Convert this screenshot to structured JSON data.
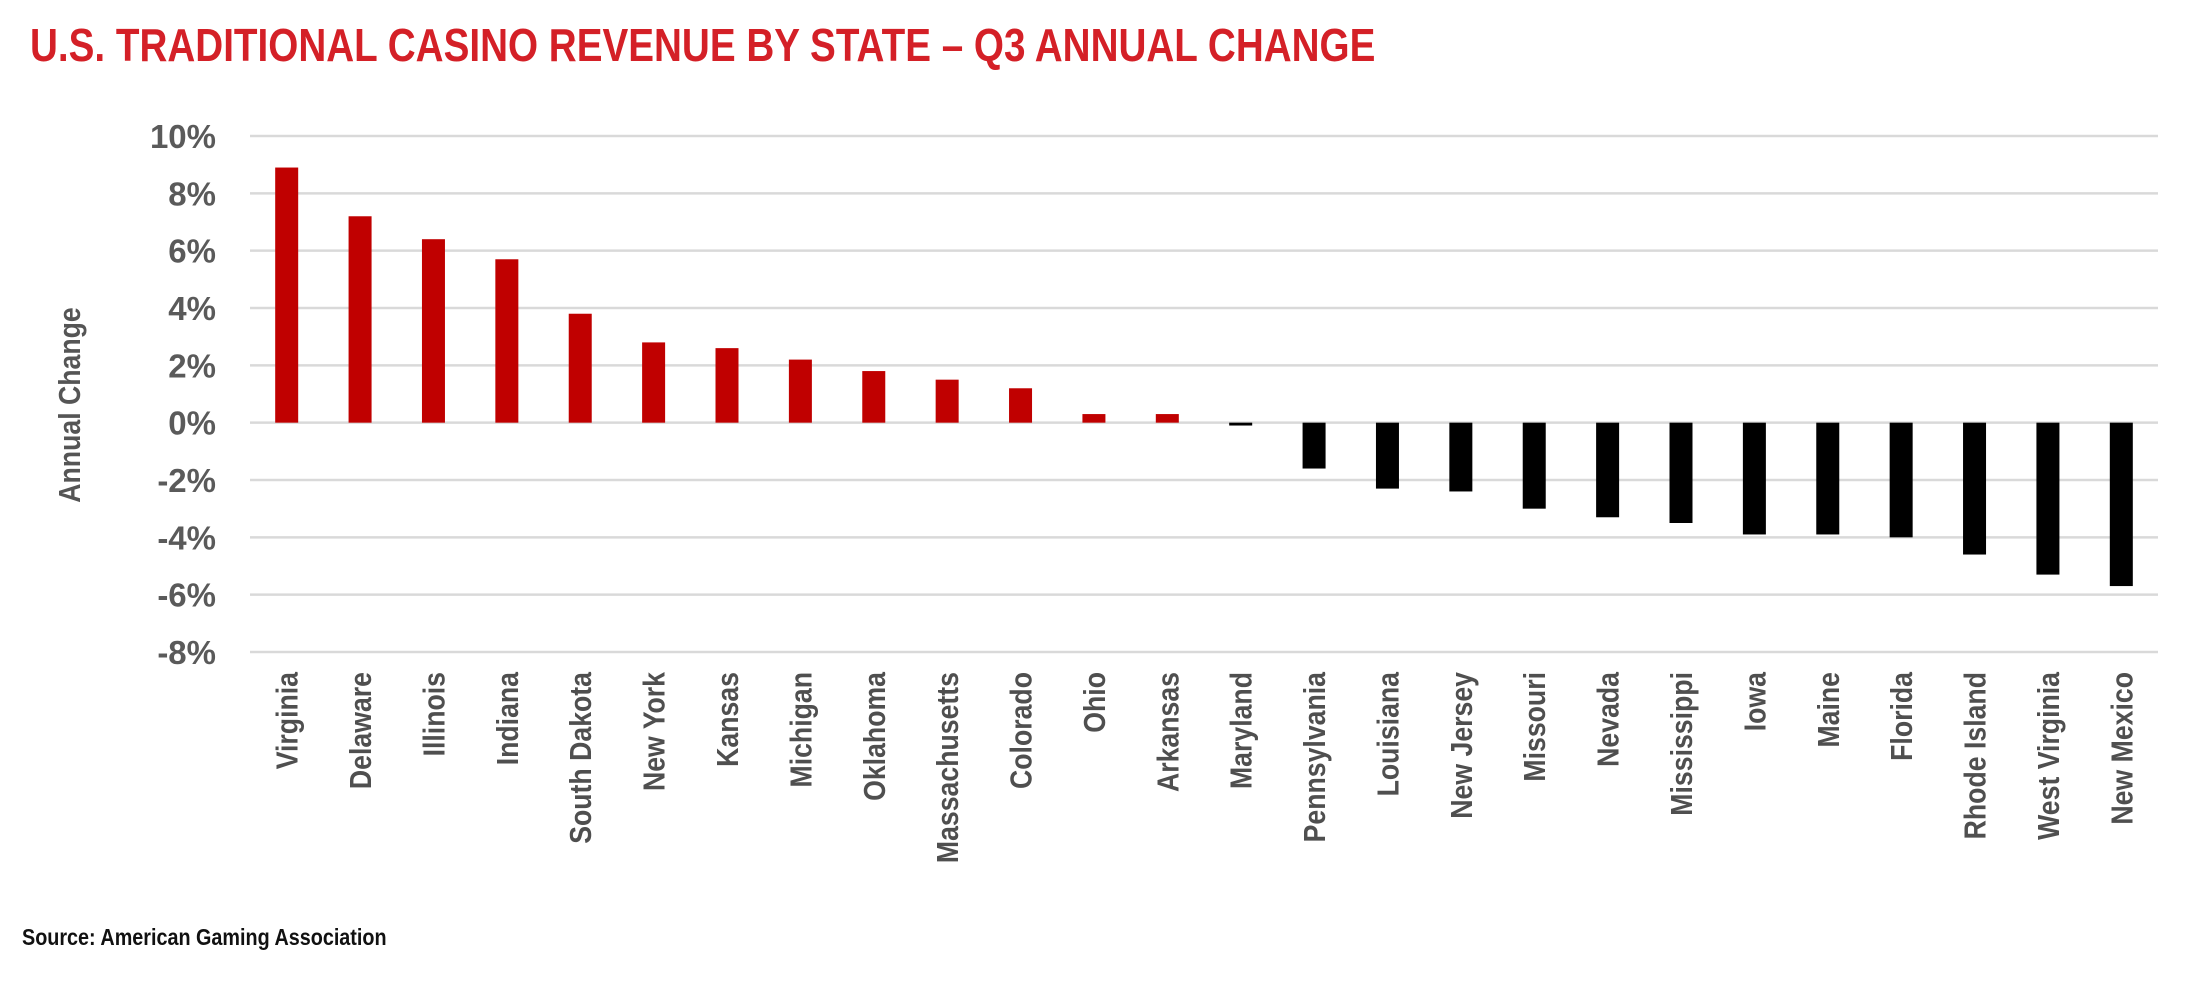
{
  "title": "U.S. TRADITIONAL CASINO REVENUE BY STATE – Q3 ANNUAL CHANGE",
  "source": "Source: American Gaming Association",
  "chart_data": {
    "type": "bar",
    "title": "U.S. TRADITIONAL CASINO REVENUE BY STATE – Q3 ANNUAL CHANGE",
    "xlabel": "",
    "ylabel": "Annual Change",
    "ylim": [
      -8,
      10
    ],
    "yticks": [
      10,
      8,
      6,
      4,
      2,
      0,
      -2,
      -4,
      -6,
      -8
    ],
    "ytick_labels": [
      "10%",
      "8%",
      "6%",
      "4%",
      "2%",
      "0%",
      "-2%",
      "-4%",
      "-6%",
      "-8%"
    ],
    "grid": true,
    "legend": "none",
    "categories": [
      "Virginia",
      "Delaware",
      "Illinois",
      "Indiana",
      "South Dakota",
      "New York",
      "Kansas",
      "Michigan",
      "Oklahoma",
      "Massachusetts",
      "Colorado",
      "Ohio",
      "Arkansas",
      "Maryland",
      "Pennsylvania",
      "Louisiana",
      "New Jersey",
      "Missouri",
      "Nevada",
      "Mississippi",
      "Iowa",
      "Maine",
      "Florida",
      "Rhode Island",
      "West Virginia",
      "New Mexico"
    ],
    "values": [
      8.9,
      7.2,
      6.4,
      5.7,
      3.8,
      2.8,
      2.6,
      2.2,
      1.8,
      1.5,
      1.2,
      0.3,
      0.3,
      -0.1,
      -1.6,
      -2.3,
      -2.4,
      -3.0,
      -3.3,
      -3.5,
      -3.9,
      -3.9,
      -4.0,
      -4.6,
      -5.3,
      -5.7
    ],
    "positive_color": "#c00000",
    "negative_color": "#000000",
    "grid_color": "#d9d9d9"
  }
}
